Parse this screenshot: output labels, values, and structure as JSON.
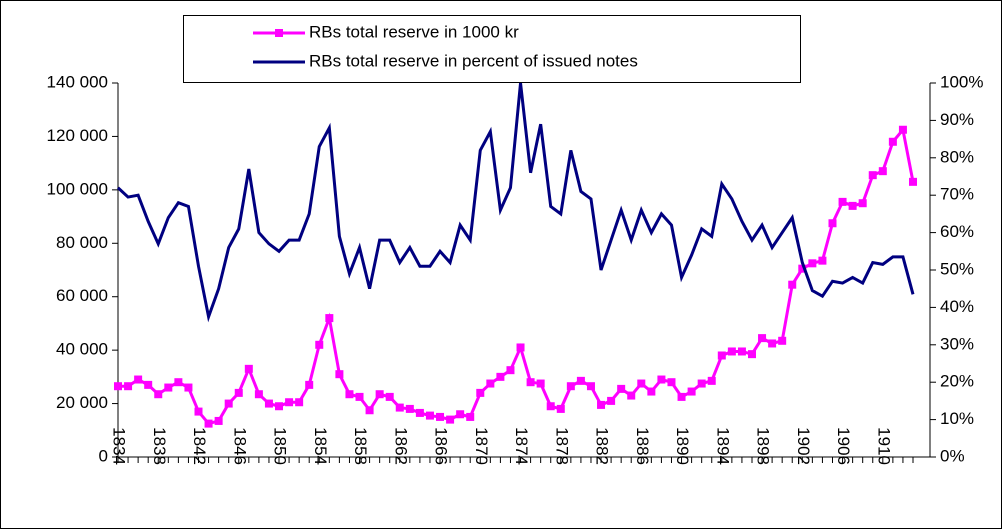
{
  "chart_data": {
    "type": "line",
    "categories": [
      "1834",
      null,
      null,
      null,
      "1838",
      null,
      null,
      null,
      "1842",
      null,
      null,
      null,
      "1846",
      null,
      null,
      null,
      "1850",
      null,
      null,
      null,
      "1854",
      null,
      null,
      null,
      "1858",
      null,
      null,
      null,
      "1862",
      null,
      null,
      null,
      "1866",
      null,
      null,
      null,
      "1870",
      null,
      null,
      null,
      "1874",
      null,
      null,
      null,
      "1878",
      null,
      null,
      null,
      "1882",
      null,
      null,
      null,
      "1886",
      null,
      null,
      null,
      "1890",
      null,
      null,
      null,
      "1894",
      null,
      null,
      null,
      "1898",
      null,
      null,
      null,
      "1902",
      null,
      null,
      null,
      "1906",
      null,
      null,
      null,
      "1910",
      null,
      null,
      null
    ],
    "series": [
      {
        "name": "RBs total reserve in 1000 kr",
        "color": "#ff00ff",
        "marker": "square",
        "values": [
          26500,
          26500,
          29000,
          27000,
          23500,
          26000,
          28000,
          26000,
          17000,
          12500,
          13500,
          20000,
          24000,
          33000,
          23500,
          20000,
          19000,
          20500,
          20500,
          27000,
          42000,
          52000,
          31000,
          23500,
          22500,
          17500,
          23500,
          22500,
          18500,
          18000,
          16500,
          15500,
          15000,
          14000,
          16000,
          15000,
          24000,
          27500,
          30000,
          32500,
          41000,
          28000,
          27500,
          19000,
          18000,
          26500,
          28500,
          26500,
          19500,
          21000,
          25500,
          23000,
          27500,
          24500,
          29000,
          28000,
          22500,
          24500,
          27500,
          28500,
          38000,
          39500,
          39500,
          38500,
          44500,
          42500,
          43500,
          64500,
          70500,
          72500,
          73500,
          87500,
          95500,
          94000,
          95000,
          105500,
          107000,
          118000,
          122500,
          103000
        ]
      },
      {
        "name": "RBs total reserve in percent of issued notes",
        "color": "#000080",
        "axis": "y2",
        "values": [
          72,
          69.5,
          70,
          63,
          57,
          64,
          68,
          67,
          51,
          37.5,
          45,
          56,
          61,
          77,
          60,
          57,
          55,
          58,
          58,
          65,
          83,
          88,
          59,
          49,
          56,
          45,
          58,
          58,
          52,
          56,
          51,
          51,
          55,
          52,
          62,
          58,
          82,
          87,
          66,
          72,
          100,
          76,
          89,
          67,
          65,
          82,
          71,
          69,
          50,
          58,
          66,
          58,
          66,
          60,
          65,
          62,
          48,
          54,
          61,
          59,
          73,
          69,
          63,
          58,
          62,
          56,
          60,
          64,
          52,
          44.5,
          43,
          47,
          46.5,
          48,
          46.5,
          52,
          51.5,
          53.5,
          53.5,
          43.5
        ]
      }
    ],
    "ylim": [
      0,
      140000
    ],
    "yticks": [
      0,
      {
        "value": 20000,
        "label": "20 000"
      },
      {
        "value": 40000,
        "label": "40 000"
      },
      {
        "value": 60000,
        "label": "60 000"
      },
      {
        "value": 80000,
        "label": "80 000"
      },
      {
        "value": 100000,
        "label": "100 000"
      },
      {
        "value": 120000,
        "label": "120 000"
      },
      {
        "value": 140000,
        "label": "140 000"
      }
    ],
    "y2lim": [
      0,
      100
    ],
    "y2ticks": [
      {
        "value": 0,
        "label": "0%"
      },
      {
        "value": 10,
        "label": "10%"
      },
      {
        "value": 20,
        "label": "20%"
      },
      {
        "value": 30,
        "label": "30%"
      },
      {
        "value": 40,
        "label": "40%"
      },
      {
        "value": 50,
        "label": "50%"
      },
      {
        "value": 60,
        "label": "60%"
      },
      {
        "value": 70,
        "label": "70%"
      },
      {
        "value": 80,
        "label": "80%"
      },
      {
        "value": 90,
        "label": "90%"
      },
      {
        "value": 100,
        "label": "100%"
      }
    ],
    "grid": false,
    "legend": "top"
  }
}
